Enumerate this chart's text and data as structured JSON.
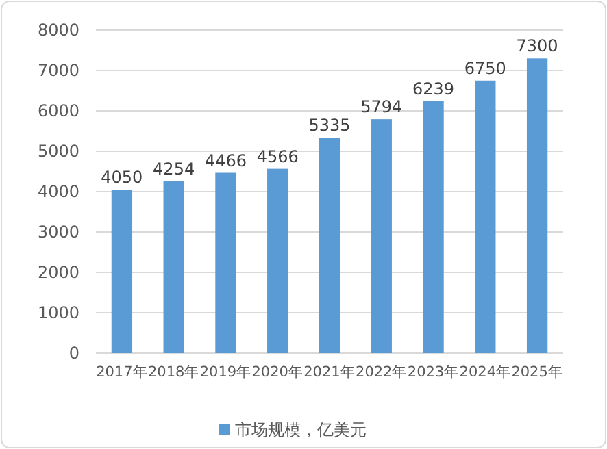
{
  "chart_data": {
    "type": "bar",
    "categories": [
      "2017年",
      "2018年",
      "2019年",
      "2020年",
      "2021年",
      "2022年",
      "2023年",
      "2024年",
      "2025年"
    ],
    "series": [
      {
        "name": "市场规模，亿美元",
        "color": "#5b9bd5",
        "values": [
          4050,
          4254,
          4466,
          4566,
          5335,
          5794,
          6239,
          6750,
          7300
        ]
      }
    ],
    "ylim": [
      0,
      8000
    ],
    "yticks": [
      0,
      1000,
      2000,
      3000,
      4000,
      5000,
      6000,
      7000,
      8000
    ],
    "grid": "y",
    "legend": "bottom",
    "data_labels": true
  }
}
